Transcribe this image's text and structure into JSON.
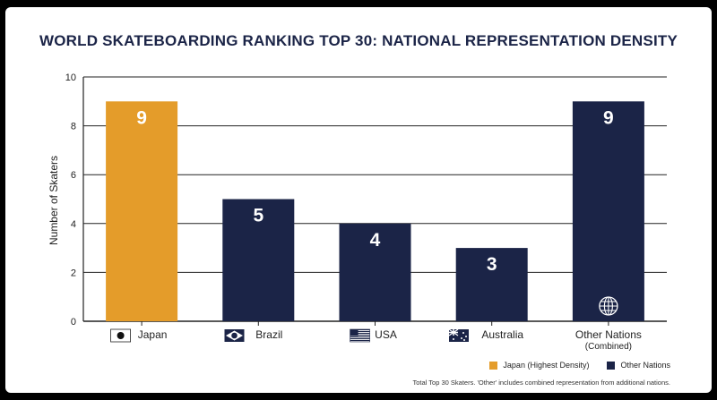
{
  "colors": {
    "highlight": "#e49c2a",
    "other": "#1b2447",
    "grid": "#222222",
    "background": "#ffffff"
  },
  "chart_data": {
    "type": "bar",
    "title": "WORLD SKATEBOARDING RANKING TOP 30: NATIONAL REPRESENTATION DENSITY",
    "ylabel": "Number of Skaters",
    "xlabel": "",
    "ylim": [
      0,
      10
    ],
    "yticks": [
      0,
      2,
      4,
      6,
      8,
      10
    ],
    "grid": true,
    "categories": [
      {
        "label": "Japan",
        "sublabel": "",
        "icon": "japan-flag-icon"
      },
      {
        "label": "Brazil",
        "sublabel": "",
        "icon": "brazil-flag-icon"
      },
      {
        "label": "USA",
        "sublabel": "",
        "icon": "usa-flag-icon"
      },
      {
        "label": "Australia",
        "sublabel": "",
        "icon": "australia-flag-icon"
      },
      {
        "label": "Other Nations",
        "sublabel": "(Combined)",
        "icon": "globe-icon"
      }
    ],
    "values": [
      9,
      5,
      4,
      3,
      9
    ],
    "highlight_index": 0,
    "legend": {
      "position": "bottom-right",
      "items": [
        {
          "label": "Japan (Highest Density)",
          "color": "#e49c2a"
        },
        {
          "label": "Other Nations",
          "color": "#1b2447"
        }
      ]
    },
    "footnote": "Total Top 30 Skaters. 'Other' includes combined representation from additional nations."
  }
}
